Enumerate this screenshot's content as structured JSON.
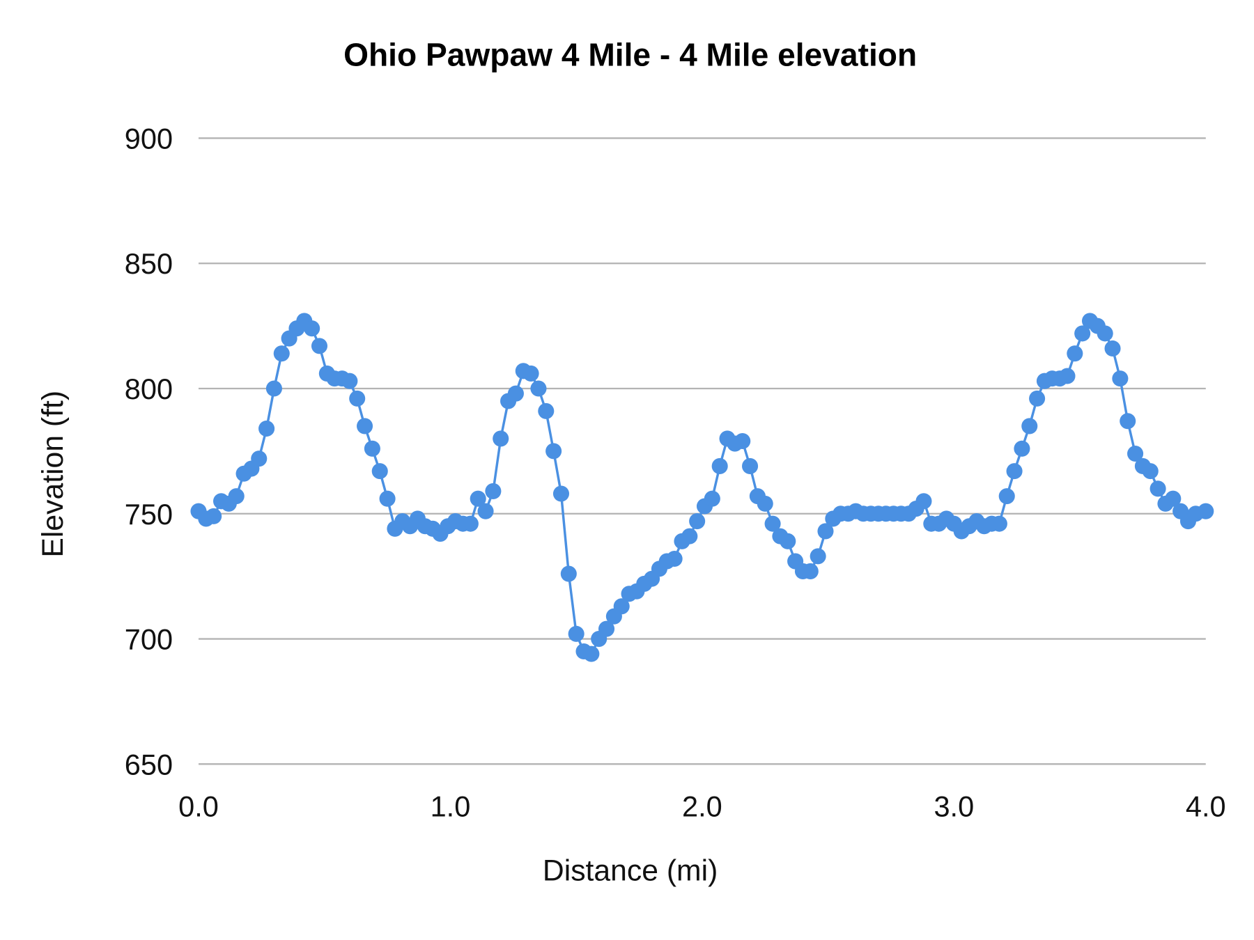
{
  "chart_data": {
    "type": "line",
    "title": "Ohio Pawpaw 4 Mile - 4 Mile elevation",
    "xlabel": "Distance (mi)",
    "ylabel": "Elevation (ft)",
    "xlim": [
      0,
      4
    ],
    "ylim": [
      650,
      900
    ],
    "x_ticks": [
      "0.0",
      "1.0",
      "2.0",
      "3.0",
      "4.0"
    ],
    "y_ticks": [
      "650",
      "700",
      "750",
      "800",
      "850",
      "900"
    ],
    "grid": "horizontal",
    "markers": true,
    "colors": {
      "series": "#4a90e2",
      "grid": "#b3b3b3"
    },
    "series": [
      {
        "x": [
          0.0,
          0.03,
          0.06,
          0.09,
          0.12,
          0.15,
          0.18,
          0.21,
          0.24,
          0.27,
          0.3,
          0.33,
          0.36,
          0.39,
          0.42,
          0.45,
          0.48,
          0.51,
          0.54,
          0.57,
          0.6,
          0.63,
          0.66,
          0.69,
          0.72,
          0.75,
          0.78,
          0.81,
          0.84,
          0.87,
          0.9,
          0.93,
          0.96,
          0.99,
          1.02,
          1.05,
          1.08,
          1.11,
          1.14,
          1.17,
          1.2,
          1.23,
          1.26,
          1.29,
          1.32,
          1.35,
          1.38,
          1.41,
          1.44,
          1.47,
          1.5,
          1.53,
          1.56,
          1.59,
          1.62,
          1.65,
          1.68,
          1.71,
          1.74,
          1.77,
          1.8,
          1.83,
          1.86,
          1.89,
          1.92,
          1.95,
          1.98,
          2.01,
          2.04,
          2.07,
          2.1,
          2.13,
          2.16,
          2.19,
          2.22,
          2.25,
          2.28,
          2.31,
          2.34,
          2.37,
          2.4,
          2.43,
          2.46,
          2.49,
          2.52,
          2.55,
          2.58,
          2.61,
          2.64,
          2.67,
          2.7,
          2.73,
          2.76,
          2.79,
          2.82,
          2.85,
          2.88,
          2.91,
          2.94,
          2.97,
          3.0,
          3.03,
          3.06,
          3.09,
          3.12,
          3.15,
          3.18,
          3.21,
          3.24,
          3.27,
          3.3,
          3.33,
          3.36,
          3.39,
          3.42,
          3.45,
          3.48,
          3.51,
          3.54,
          3.57,
          3.6,
          3.63,
          3.66,
          3.69,
          3.72,
          3.75,
          3.78,
          3.81,
          3.84,
          3.87,
          3.9,
          3.93,
          3.96,
          4.0
        ],
        "y": [
          751,
          748,
          749,
          755,
          754,
          757,
          766,
          768,
          772,
          784,
          800,
          814,
          820,
          824,
          827,
          824,
          817,
          806,
          804,
          804,
          803,
          796,
          785,
          776,
          767,
          756,
          744,
          747,
          745,
          748,
          745,
          744,
          742,
          745,
          747,
          746,
          746,
          756,
          751,
          759,
          780,
          795,
          798,
          807,
          806,
          800,
          791,
          775,
          758,
          726,
          702,
          695,
          694,
          700,
          704,
          709,
          713,
          718,
          719,
          722,
          724,
          728,
          731,
          732,
          739,
          741,
          747,
          753,
          756,
          769,
          780,
          778,
          779,
          769,
          757,
          754,
          746,
          741,
          739,
          731,
          727,
          727,
          733,
          743,
          748,
          750,
          750,
          751,
          750,
          750,
          750,
          750,
          750,
          750,
          750,
          752,
          755,
          746,
          746,
          748,
          746,
          743,
          745,
          747,
          745,
          746,
          746,
          757,
          767,
          776,
          785,
          796,
          803,
          804,
          804,
          805,
          814,
          822,
          827,
          825,
          822,
          816,
          804,
          787,
          774,
          769,
          767,
          760,
          754,
          756,
          751,
          747,
          750,
          751
        ]
      }
    ]
  }
}
